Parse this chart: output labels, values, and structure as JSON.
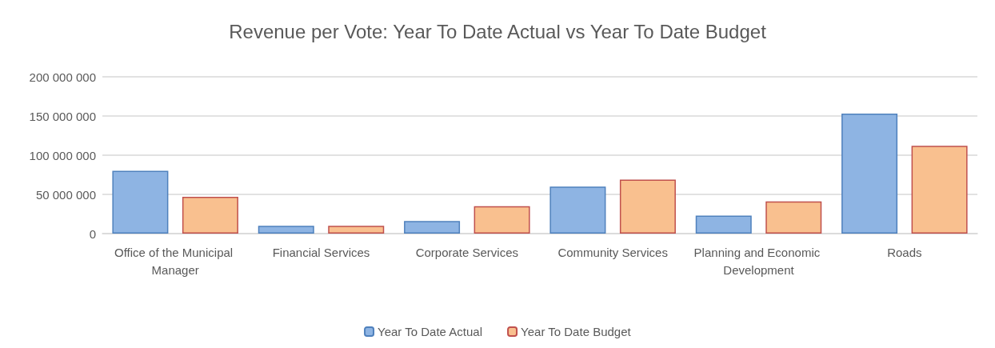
{
  "chart_data": {
    "type": "bar",
    "title": "Revenue per Vote: Year To Date Actual vs Year To Date Budget",
    "categories": [
      "Office of the Municipal Manager",
      "Financial Services",
      "Corporate Services",
      "Community Services",
      "Planning and Economic Development",
      "Roads"
    ],
    "series": [
      {
        "name": "Year To Date Actual",
        "color": "#8eb4e3",
        "values": [
          80000000,
          10000000,
          16000000,
          60000000,
          23000000,
          153000000
        ]
      },
      {
        "name": "Year To Date Budget",
        "color": "#f9c08f",
        "values": [
          47000000,
          10000000,
          35000000,
          69000000,
          41000000,
          112000000
        ]
      }
    ],
    "ylim": [
      0,
      200000000
    ],
    "yticks": [
      {
        "value": 0,
        "label": "0"
      },
      {
        "value": 50000000,
        "label": "50 000 000"
      },
      {
        "value": 100000000,
        "label": "100 000 000"
      },
      {
        "value": 150000000,
        "label": "150 000 000"
      },
      {
        "value": 200000000,
        "label": "200 000 000"
      }
    ],
    "grid": "y",
    "legend": "bottom"
  }
}
